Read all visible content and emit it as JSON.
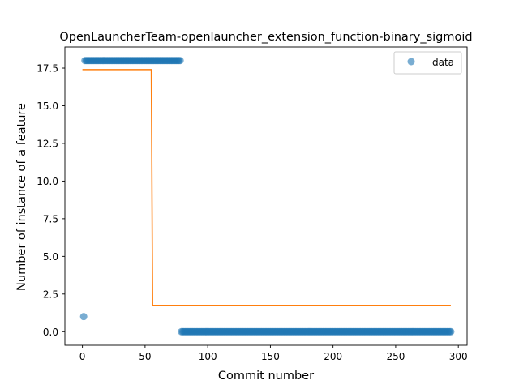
{
  "chart_data": {
    "type": "scatter",
    "title": "OpenLauncherTeam-openlauncher_extension_function-binary_sigmoid",
    "xlabel": "Commit number",
    "ylabel": "Number of instance of a feature",
    "xlim": [
      -14,
      307
    ],
    "ylim": [
      -0.9,
      18.9
    ],
    "xticks": [
      0,
      50,
      100,
      150,
      200,
      250,
      300
    ],
    "xtick_labels": [
      "0",
      "50",
      "100",
      "150",
      "200",
      "250",
      "300"
    ],
    "yticks": [
      0.0,
      2.5,
      5.0,
      7.5,
      10.0,
      12.5,
      15.0,
      17.5
    ],
    "ytick_labels": [
      "0.0",
      "2.5",
      "5.0",
      "7.5",
      "10.0",
      "12.5",
      "15.0",
      "17.5"
    ],
    "grid": false,
    "legend": {
      "position": "top-right",
      "entries": [
        "data"
      ]
    },
    "series": [
      {
        "name": "data",
        "kind": "scatter",
        "color": "#1f77b4",
        "points": [
          [
            1,
            1
          ]
        ],
        "runs": [
          {
            "x_start": 2,
            "x_end": 78,
            "y": 18
          },
          {
            "x_start": 79,
            "x_end": 294,
            "y": 0
          }
        ]
      },
      {
        "kind": "step",
        "color": "#ff7f0e",
        "points": [
          [
            0,
            17.4
          ],
          [
            55,
            17.4
          ],
          [
            56,
            1.75
          ],
          [
            294,
            1.75
          ]
        ]
      }
    ]
  }
}
